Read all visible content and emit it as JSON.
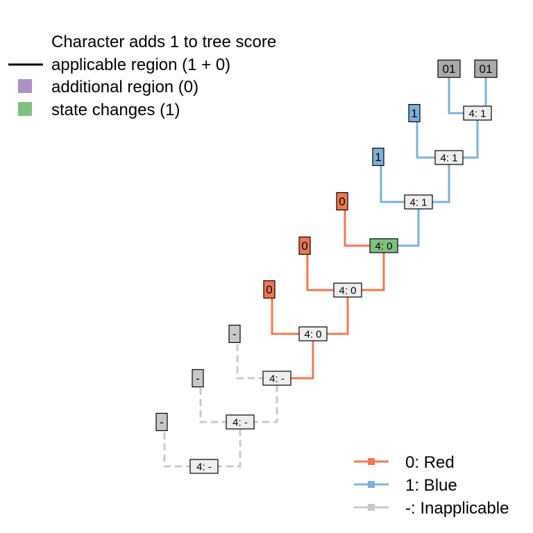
{
  "colors": {
    "red": "#f07850",
    "blue": "#7fb0d8",
    "inapplicable": "#c8c8c8",
    "changed": "#80c080",
    "additional": "#b090c8",
    "internal_fill": "#eeeeee",
    "unknown_fill": "#aaaaaa"
  },
  "top_legend": {
    "title": "Character adds 1 to tree score",
    "items": [
      {
        "symbol": "line",
        "color": "#000000",
        "label": "applicable region (1 + 0)"
      },
      {
        "symbol": "square",
        "color": "#b090c8",
        "label": "additional region (0)"
      },
      {
        "symbol": "square",
        "color": "#80c080",
        "label": "state changes (1)"
      }
    ]
  },
  "state_legend": [
    {
      "label": "0: Red",
      "color": "#f07850"
    },
    {
      "label": "1: Blue",
      "color": "#7fb0d8"
    },
    {
      "label": "-: Inapplicable",
      "color": "#c8c8c8"
    }
  ],
  "tree": {
    "tips": [
      {
        "id": "t1",
        "label": "01",
        "state": "?"
      },
      {
        "id": "t2",
        "label": "01",
        "state": "?"
      },
      {
        "id": "t3",
        "label": "1",
        "state": "1"
      },
      {
        "id": "t4",
        "label": "1",
        "state": "1"
      },
      {
        "id": "t5",
        "label": "0",
        "state": "0"
      },
      {
        "id": "t6",
        "label": "0",
        "state": "0"
      },
      {
        "id": "t7",
        "label": "0",
        "state": "0"
      },
      {
        "id": "t8",
        "label": "-",
        "state": "-"
      },
      {
        "id": "t9",
        "label": "-",
        "state": "-"
      },
      {
        "id": "t10",
        "label": "-",
        "state": "-"
      }
    ],
    "internal": [
      {
        "id": "n1",
        "label": "4: 1",
        "state": "1",
        "children": [
          "t1",
          "t2"
        ]
      },
      {
        "id": "n2",
        "label": "4: 1",
        "state": "1",
        "children": [
          "t3",
          "n1"
        ]
      },
      {
        "id": "n3",
        "label": "4: 1",
        "state": "1",
        "children": [
          "t4",
          "n2"
        ]
      },
      {
        "id": "n4",
        "label": "4: 0",
        "state": "0",
        "changed": true,
        "children": [
          "t5",
          "n3"
        ]
      },
      {
        "id": "n5",
        "label": "4: 0",
        "state": "0",
        "children": [
          "t6",
          "n4"
        ]
      },
      {
        "id": "n6",
        "label": "4: 0",
        "state": "0",
        "children": [
          "t7",
          "n5"
        ]
      },
      {
        "id": "n7",
        "label": "4: -",
        "state": "-",
        "children": [
          "t8",
          "n6"
        ]
      },
      {
        "id": "n8",
        "label": "4: -",
        "state": "-",
        "children": [
          "t9",
          "n7"
        ]
      },
      {
        "id": "n9",
        "label": "4: -",
        "state": "-",
        "children": [
          "t10",
          "n8"
        ]
      }
    ]
  }
}
